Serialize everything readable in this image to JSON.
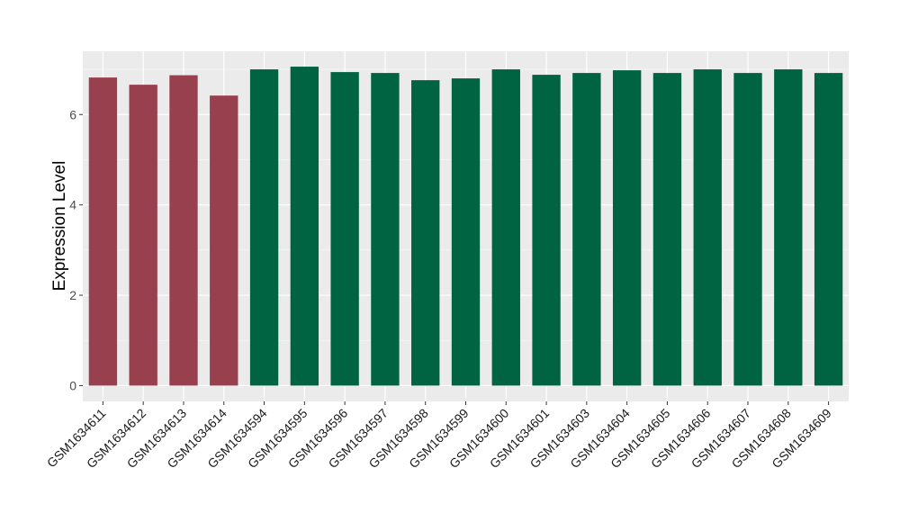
{
  "chart_data": {
    "type": "bar",
    "title": "",
    "xlabel": "",
    "ylabel": "Expression Level",
    "ylim": [
      -0.35,
      7.4
    ],
    "yticks": [
      0,
      2,
      4,
      6
    ],
    "grid": true,
    "legend": "none",
    "colors": {
      "panel": "#ebebeb",
      "grid_major": "#ffffff",
      "group_a": "#99404f",
      "group_b": "#006341"
    },
    "categories": [
      "GSM1634611",
      "GSM1634612",
      "GSM1634613",
      "GSM1634614",
      "GSM1634594",
      "GSM1634595",
      "GSM1634596",
      "GSM1634597",
      "GSM1634598",
      "GSM1634599",
      "GSM1634600",
      "GSM1634601",
      "GSM1634603",
      "GSM1634604",
      "GSM1634605",
      "GSM1634606",
      "GSM1634607",
      "GSM1634608",
      "GSM1634609"
    ],
    "values": [
      6.82,
      6.66,
      6.87,
      6.42,
      7.0,
      7.06,
      6.94,
      6.92,
      6.76,
      6.8,
      7.0,
      6.88,
      6.92,
      6.98,
      6.92,
      7.0,
      6.92,
      7.0,
      6.92
    ],
    "bar_groups": [
      "a",
      "a",
      "a",
      "a",
      "b",
      "b",
      "b",
      "b",
      "b",
      "b",
      "b",
      "b",
      "b",
      "b",
      "b",
      "b",
      "b",
      "b",
      "b"
    ]
  }
}
